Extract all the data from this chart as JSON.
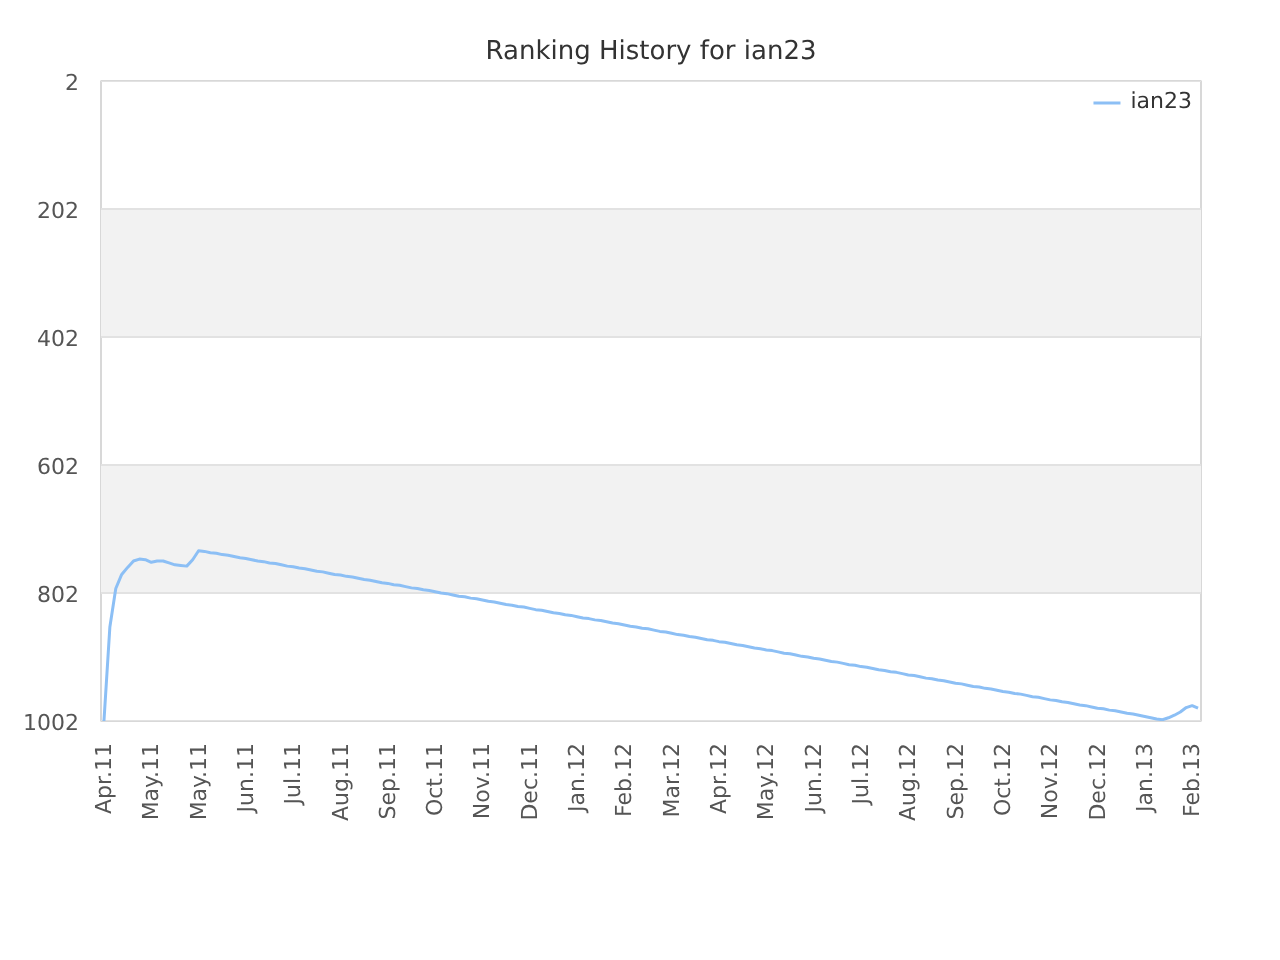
{
  "chart_data": {
    "type": "line",
    "title": "Ranking History for ian23",
    "categories": [
      "Apr.11",
      null,
      null,
      null,
      null,
      null,
      null,
      null,
      "May.11",
      null,
      null,
      null,
      null,
      null,
      null,
      null,
      "May.11",
      null,
      null,
      null,
      null,
      null,
      null,
      null,
      "Jun.11",
      null,
      null,
      null,
      null,
      null,
      null,
      null,
      "Jul.11",
      null,
      null,
      null,
      null,
      null,
      null,
      null,
      "Aug.11",
      null,
      null,
      null,
      null,
      null,
      null,
      null,
      "Sep.11",
      null,
      null,
      null,
      null,
      null,
      null,
      null,
      "Oct.11",
      null,
      null,
      null,
      null,
      null,
      null,
      null,
      "Nov.11",
      null,
      null,
      null,
      null,
      null,
      null,
      null,
      "Dec.11",
      null,
      null,
      null,
      null,
      null,
      null,
      null,
      "Jan.12",
      null,
      null,
      null,
      null,
      null,
      null,
      null,
      "Feb.12",
      null,
      null,
      null,
      null,
      null,
      null,
      null,
      "Mar.12",
      null,
      null,
      null,
      null,
      null,
      null,
      null,
      "Apr.12",
      null,
      null,
      null,
      null,
      null,
      null,
      null,
      "May.12",
      null,
      null,
      null,
      null,
      null,
      null,
      null,
      "Jun.12",
      null,
      null,
      null,
      null,
      null,
      null,
      null,
      "Jul.12",
      null,
      null,
      null,
      null,
      null,
      null,
      null,
      "Aug.12",
      null,
      null,
      null,
      null,
      null,
      null,
      null,
      "Sep.12",
      null,
      null,
      null,
      null,
      null,
      null,
      null,
      "Oct.12",
      null,
      null,
      null,
      null,
      null,
      null,
      null,
      "Nov.12",
      null,
      null,
      null,
      null,
      null,
      null,
      null,
      "Dec.12",
      null,
      null,
      null,
      null,
      null,
      null,
      null,
      "Jan.13",
      null,
      null,
      null,
      null,
      null,
      null,
      null,
      "Feb.13",
      null
    ],
    "series": [
      {
        "name": "ian23",
        "color": "#8cbff5",
        "values": [
          1002,
          855,
          795,
          773,
          762,
          752,
          749,
          750,
          754,
          752,
          752,
          755,
          758,
          759,
          760,
          750,
          736,
          737,
          739,
          740,
          742,
          743,
          745,
          747,
          748,
          750,
          752,
          753,
          755,
          756,
          758,
          760,
          761,
          763,
          764,
          766,
          768,
          769,
          771,
          773,
          774,
          776,
          777,
          779,
          781,
          782,
          784,
          786,
          787,
          789,
          790,
          792,
          794,
          795,
          797,
          798,
          800,
          802,
          803,
          805,
          807,
          808,
          810,
          811,
          813,
          815,
          816,
          818,
          820,
          821,
          823,
          824,
          826,
          828,
          829,
          831,
          833,
          834,
          836,
          837,
          839,
          841,
          842,
          844,
          845,
          847,
          849,
          850,
          852,
          854,
          855,
          857,
          858,
          860,
          862,
          863,
          865,
          867,
          868,
          870,
          871,
          873,
          875,
          876,
          878,
          879,
          881,
          883,
          884,
          886,
          888,
          889,
          891,
          892,
          894,
          896,
          897,
          899,
          901,
          902,
          904,
          905,
          907,
          909,
          910,
          912,
          914,
          915,
          917,
          918,
          920,
          922,
          923,
          925,
          926,
          928,
          930,
          931,
          933,
          935,
          936,
          938,
          939,
          941,
          943,
          944,
          946,
          948,
          949,
          951,
          952,
          954,
          956,
          957,
          959,
          960,
          962,
          964,
          965,
          967,
          969,
          970,
          972,
          973,
          975,
          977,
          978,
          980,
          982,
          983,
          985,
          986,
          988,
          990,
          991,
          993,
          995,
          997,
          999,
          1000,
          997,
          993,
          988,
          981,
          978,
          982
        ]
      }
    ],
    "ylim": [
      1002,
      2
    ],
    "yticks": [
      2,
      202,
      402,
      602,
      802,
      1002
    ],
    "grid": "y",
    "legend": "top right",
    "bands": [
      {
        "axis": "y",
        "from": 202,
        "to": 402,
        "color": "#f2f2f2"
      },
      {
        "axis": "y",
        "from": 602,
        "to": 802,
        "color": "#f2f2f2"
      }
    ]
  }
}
